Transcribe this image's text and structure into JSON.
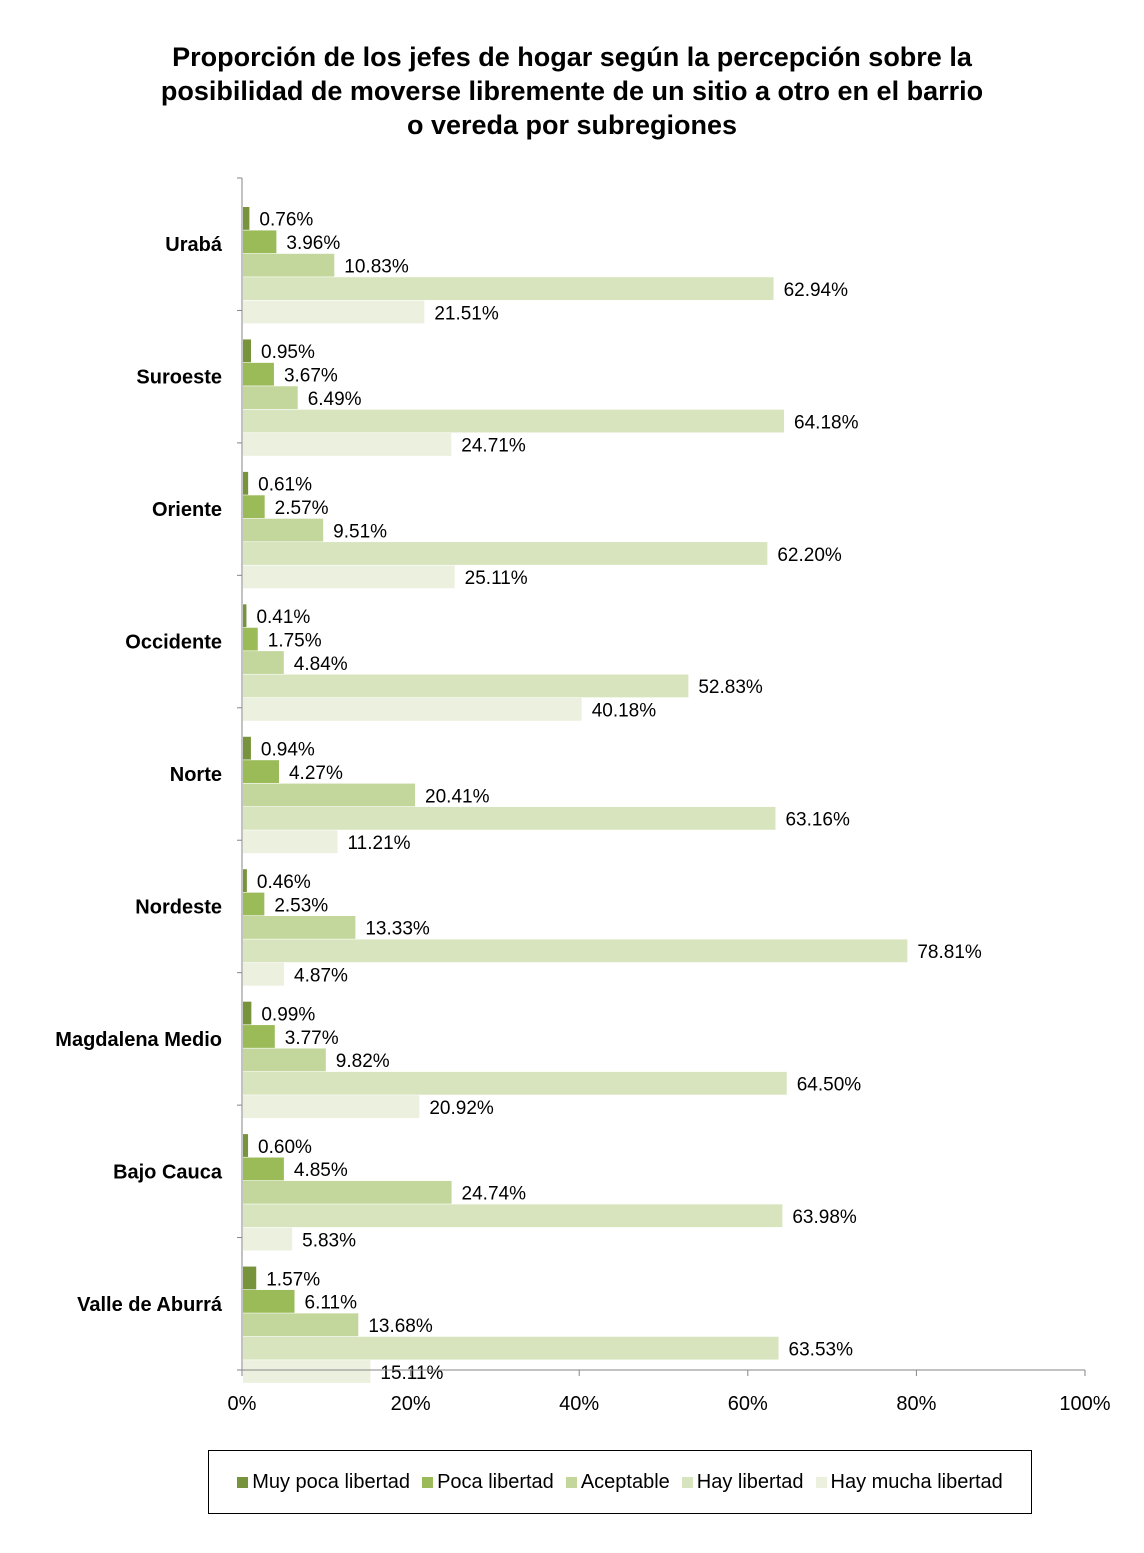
{
  "chart_data": {
    "type": "bar",
    "orientation": "horizontal",
    "title_lines": [
      "Proporción de los jefes de hogar  según la percepción sobre la",
      "posibilidad de moverse libremente de un sitio a otro en el barrio",
      "o vereda por subregiones"
    ],
    "categories": [
      "Urabá",
      "Suroeste",
      "Oriente",
      "Occidente",
      "Norte",
      "Nordeste",
      "Magdalena Medio",
      "Bajo Cauca",
      "Valle de Aburrá"
    ],
    "series": [
      {
        "name": "Muy poca libertad",
        "color": "#77933c",
        "values": [
          0.76,
          0.95,
          0.61,
          0.41,
          0.94,
          0.46,
          0.99,
          0.6,
          1.57
        ],
        "labels": [
          "0.76%",
          "0.95%",
          "0.61%",
          "0.41%",
          "0.94%",
          "0.46%",
          "0.99%",
          "0.60%",
          "1.57%"
        ]
      },
      {
        "name": "Poca libertad",
        "color": "#9bbb59",
        "values": [
          3.96,
          3.67,
          2.57,
          1.75,
          4.27,
          2.53,
          3.77,
          4.85,
          6.11
        ],
        "labels": [
          "3.96%",
          "3.67%",
          "2.57%",
          "1.75%",
          "4.27%",
          "2.53%",
          "3.77%",
          "4.85%",
          "6.11%"
        ]
      },
      {
        "name": "Aceptable",
        "color": "#c3d69b",
        "values": [
          10.83,
          6.49,
          9.51,
          4.84,
          20.41,
          13.33,
          9.82,
          24.74,
          13.68
        ],
        "labels": [
          "10.83%",
          "6.49%",
          "9.51%",
          "4.84%",
          "20.41%",
          "13.33%",
          "9.82%",
          "24.74%",
          "13.68%"
        ]
      },
      {
        "name": "Hay libertad",
        "color": "#d7e4bd",
        "values": [
          62.94,
          64.18,
          62.2,
          52.83,
          63.16,
          78.81,
          64.5,
          63.98,
          63.53
        ],
        "labels": [
          "62.94%",
          "64.18%",
          "62.20%",
          "52.83%",
          "63.16%",
          "78.81%",
          "64.50%",
          "63.98%",
          "63.53%"
        ]
      },
      {
        "name": "Hay mucha libertad",
        "color": "#ebf1de",
        "values": [
          21.51,
          24.71,
          25.11,
          40.18,
          11.21,
          4.87,
          20.92,
          5.83,
          15.11
        ],
        "labels": [
          "21.51%",
          "24.71%",
          "25.11%",
          "40.18%",
          "11.21%",
          "4.87%",
          "20.92%",
          "5.83%",
          "15.11%"
        ]
      }
    ],
    "x_ticks": [
      "0%",
      "20%",
      "40%",
      "60%",
      "80%",
      "100%"
    ],
    "xlim": [
      0,
      100
    ],
    "grid": false,
    "legend_position": "bottom"
  }
}
